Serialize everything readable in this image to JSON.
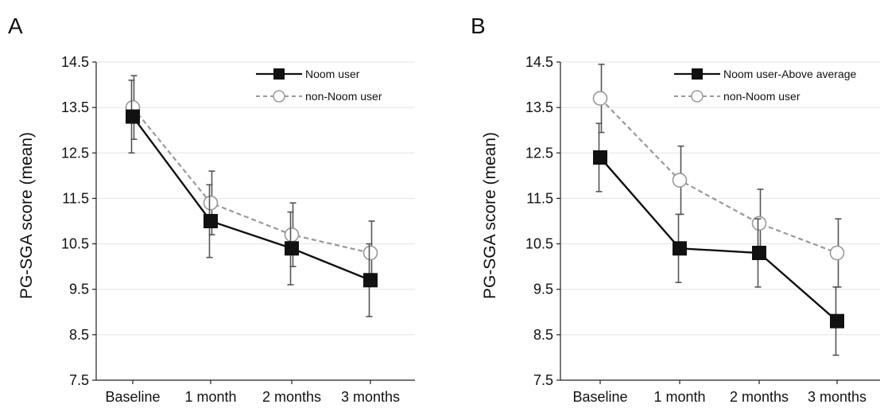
{
  "chart_data": [
    {
      "type": "line",
      "panel_label": "A",
      "categories": [
        "Baseline",
        "1 month",
        "2 months",
        "3 months"
      ],
      "ylabel": "PG-SGA score (mean)",
      "ylim": [
        7.5,
        14.5
      ],
      "yticks": [
        "7.5",
        "8.5",
        "9.5",
        "10.5",
        "11.5",
        "12.5",
        "13.5",
        "14.5"
      ],
      "grid": true,
      "legend_position": "top-right",
      "series": [
        {
          "name": "Noom user",
          "values": [
            13.3,
            11.0,
            10.4,
            9.7
          ],
          "err_low": [
            12.5,
            10.2,
            9.6,
            8.9
          ],
          "err_high": [
            14.1,
            11.8,
            11.2,
            10.5
          ],
          "style": "solid",
          "marker": "filled-square",
          "color": "#111111"
        },
        {
          "name": "non-Noom user",
          "values": [
            13.5,
            11.4,
            10.7,
            10.3
          ],
          "err_low": [
            12.8,
            10.7,
            10.0,
            9.6
          ],
          "err_high": [
            14.2,
            12.1,
            11.4,
            11.0
          ],
          "style": "dashed",
          "marker": "open-circle",
          "color": "#999999"
        }
      ]
    },
    {
      "type": "line",
      "panel_label": "B",
      "categories": [
        "Baseline",
        "1 month",
        "2 months",
        "3 months"
      ],
      "ylabel": "PG-SGA score (mean)",
      "ylim": [
        7.5,
        14.5
      ],
      "yticks": [
        "7.5",
        "8.5",
        "9.5",
        "10.5",
        "11.5",
        "12.5",
        "13.5",
        "14.5"
      ],
      "grid": true,
      "legend_position": "top-right",
      "series": [
        {
          "name": "Noom user-Above average",
          "values": [
            12.4,
            10.4,
            10.3,
            8.8
          ],
          "err_low": [
            11.65,
            9.65,
            9.55,
            8.05
          ],
          "err_high": [
            13.15,
            11.15,
            11.05,
            9.55
          ],
          "style": "solid",
          "marker": "filled-square",
          "color": "#111111"
        },
        {
          "name": "non-Noom user",
          "values": [
            13.7,
            11.9,
            10.95,
            10.3
          ],
          "err_low": [
            12.95,
            11.15,
            10.2,
            9.55
          ],
          "err_high": [
            14.45,
            12.65,
            11.7,
            11.05
          ],
          "style": "dashed",
          "marker": "open-circle",
          "color": "#999999"
        }
      ]
    }
  ]
}
